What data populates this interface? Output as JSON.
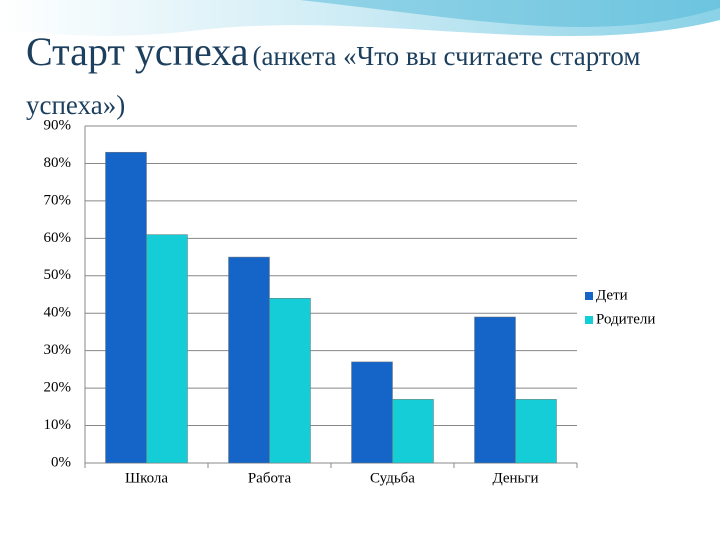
{
  "chart_data": {
    "type": "bar",
    "title": "Старт успеха",
    "subtitle": "(анкета «Что вы считаете стартом успеха»)",
    "categories": [
      "Школа",
      "Работа",
      "Судьба",
      "Деньги"
    ],
    "series": [
      {
        "name": "Дети",
        "color": "#1565c8",
        "values": [
          83,
          55,
          27,
          39
        ]
      },
      {
        "name": "Родители",
        "color": "#14cdd6",
        "values": [
          61,
          44,
          17,
          17
        ]
      }
    ],
    "ylim": [
      0,
      90
    ],
    "yticks": [
      {
        "value": 0,
        "label": "0%"
      },
      {
        "value": 10,
        "label": "10%"
      },
      {
        "value": 20,
        "label": "20%"
      },
      {
        "value": 30,
        "label": "30%"
      },
      {
        "value": 40,
        "label": "40%"
      },
      {
        "value": 50,
        "label": "50%"
      },
      {
        "value": 60,
        "label": "60%"
      },
      {
        "value": 70,
        "label": "70%"
      },
      {
        "value": 80,
        "label": "80%"
      },
      {
        "value": 90,
        "label": "90%"
      }
    ],
    "grid": true,
    "legend": "right"
  }
}
